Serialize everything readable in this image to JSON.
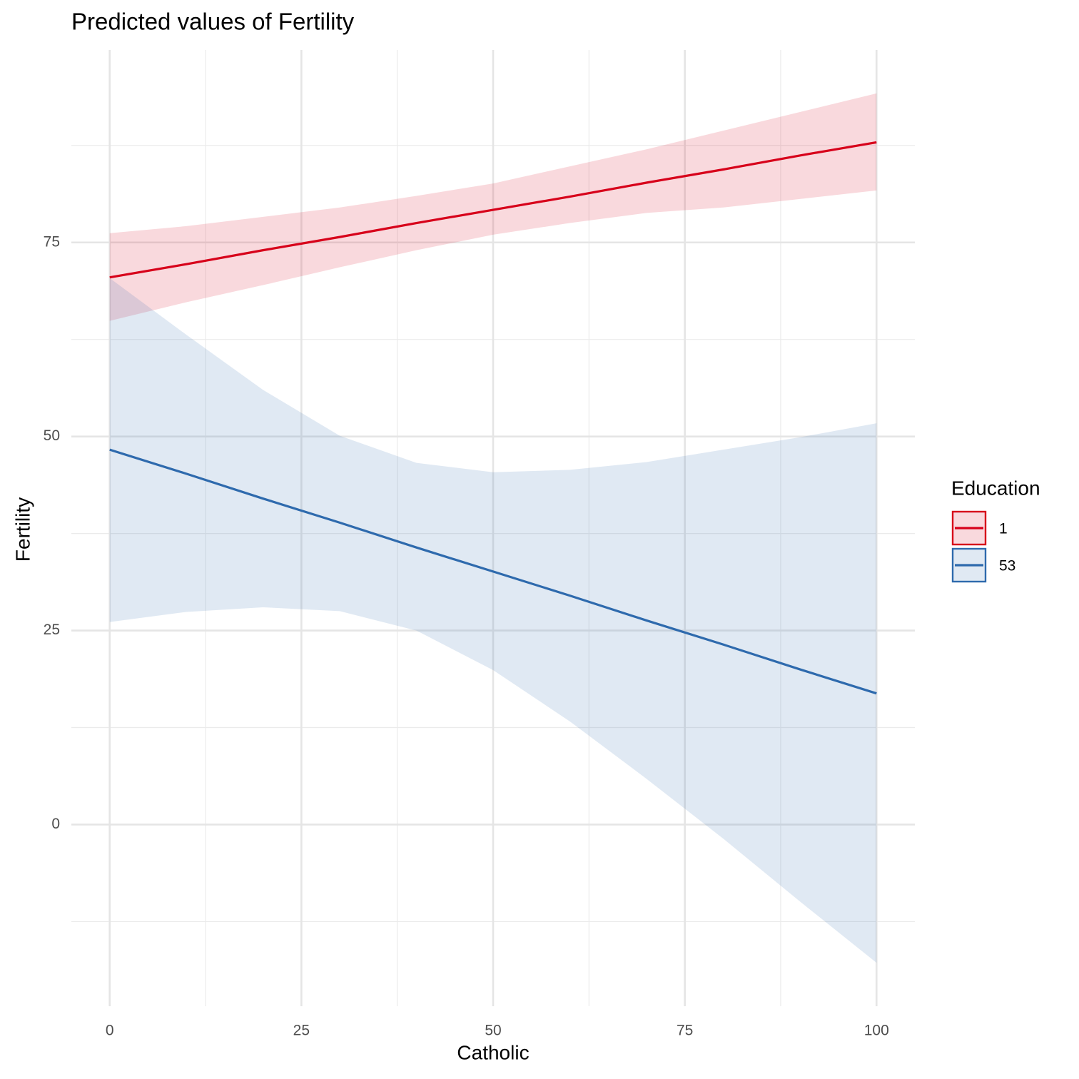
{
  "chart_data": {
    "type": "line",
    "title": "Predicted values of Fertility",
    "x_label": "Catholic",
    "y_label": "Fertility",
    "legend_title": "Education",
    "x": [
      0,
      10,
      20,
      30,
      40,
      50,
      60,
      70,
      80,
      90,
      100
    ],
    "series": [
      {
        "name": "1",
        "color": "#d7001a",
        "values": [
          70.5,
          72.2,
          74.0,
          75.7,
          77.5,
          79.2,
          80.9,
          82.7,
          84.4,
          86.2,
          87.9
        ],
        "lower": [
          64.9,
          67.3,
          69.5,
          71.8,
          74.0,
          76.0,
          77.5,
          78.8,
          79.5,
          80.6,
          81.7
        ],
        "upper": [
          76.2,
          77.1,
          78.3,
          79.5,
          81.0,
          82.6,
          84.8,
          87.0,
          89.4,
          91.8,
          94.2
        ]
      },
      {
        "name": "53",
        "color": "#2e6aad",
        "values": [
          48.3,
          45.2,
          42.0,
          38.9,
          35.7,
          32.6,
          29.5,
          26.3,
          23.2,
          20.0,
          16.9
        ],
        "lower": [
          26.1,
          27.4,
          28.0,
          27.5,
          25.0,
          19.9,
          13.3,
          5.9,
          -1.8,
          -9.9,
          -17.8
        ],
        "upper": [
          70.4,
          63.1,
          56.0,
          50.1,
          46.6,
          45.4,
          45.7,
          46.7,
          48.3,
          49.9,
          51.7
        ]
      }
    ],
    "ribbon_opacity": 0.15,
    "xlim": [
      -5,
      105
    ],
    "xticks": [
      0,
      25,
      50,
      75,
      100
    ],
    "xminor": [
      12.5,
      37.5,
      62.5,
      87.5
    ],
    "ylim": [
      -23.4,
      99.8
    ],
    "yticks": [
      0,
      25,
      50,
      75
    ],
    "yminor": [
      -12.5,
      12.5,
      37.5,
      62.5,
      87.5
    ],
    "grid": true
  }
}
